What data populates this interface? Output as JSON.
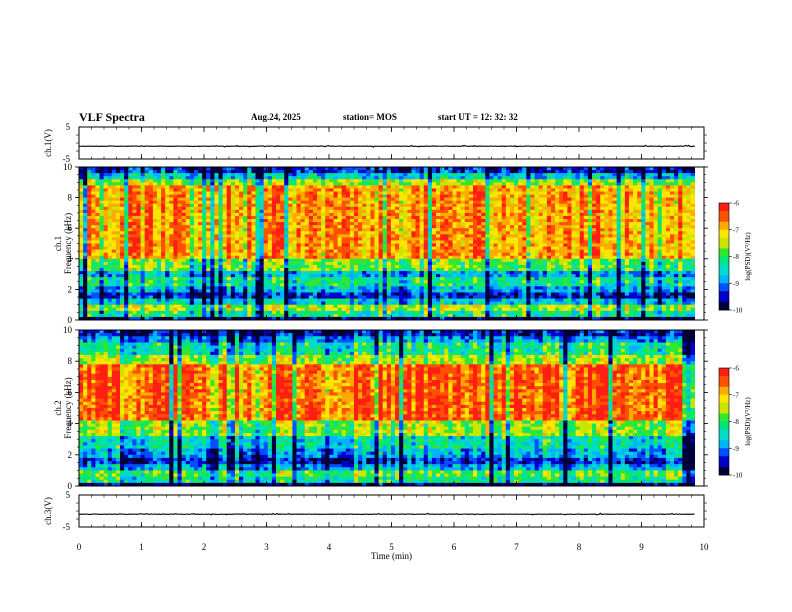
{
  "header": {
    "title": "VLF Spectra",
    "date": "Aug.24, 2025",
    "station": "station= MOS",
    "start_ut": "start  UT =   12: 32: 32"
  },
  "chart_data": {
    "type": "heatmap",
    "xlabel": "Time  (min)",
    "xlim": [
      0,
      10
    ],
    "x_ticks": [
      0,
      1,
      2,
      3,
      4,
      5,
      6,
      7,
      8,
      9,
      10
    ],
    "panels": [
      {
        "id": "ch1-waveform",
        "kind": "line",
        "ylabel": "ch.1(V)",
        "ylim": [
          -5,
          5
        ],
        "y_ticks": [
          "5",
          "-5"
        ],
        "baseline": -1
      },
      {
        "id": "ch1-spectrogram",
        "kind": "heatmap",
        "ylabel_top": "ch.1",
        "ylabel": "Frequency  (kHz)",
        "ylim": [
          0,
          10
        ],
        "y_ticks": [
          0,
          2,
          4,
          6,
          8,
          10
        ],
        "colorbar": {
          "label": "log(PSD)(V²/Hz)",
          "range": [
            -10,
            -6
          ],
          "ticks": [
            "-6",
            "-7",
            "-8",
            "-9",
            "-10"
          ]
        }
      },
      {
        "id": "ch2-spectrogram",
        "kind": "heatmap",
        "ylabel_top": "ch.2",
        "ylabel": "Frequency  (kHz)",
        "ylim": [
          0,
          10
        ],
        "y_ticks": [
          0,
          2,
          4,
          6,
          8,
          10
        ],
        "colorbar": {
          "label": "log(PSD)(V²/Hz)",
          "range": [
            -10,
            -6
          ],
          "ticks": [
            "-6",
            "-7",
            "-8",
            "-9",
            "-10"
          ]
        }
      },
      {
        "id": "ch3-waveform",
        "kind": "line",
        "ylabel": "ch.3(V)",
        "ylim": [
          -5,
          5
        ],
        "y_ticks": [
          "5",
          "-5"
        ],
        "baseline": -1
      }
    ],
    "data_end_min": 9.85,
    "colormap": [
      "#00003a",
      "#0000c8",
      "#0050ff",
      "#00b4ff",
      "#00dcc8",
      "#00e678",
      "#32e632",
      "#c8e600",
      "#ffe600",
      "#ffaa00",
      "#ff5000",
      "#ff1e14",
      "#ffffff"
    ]
  }
}
